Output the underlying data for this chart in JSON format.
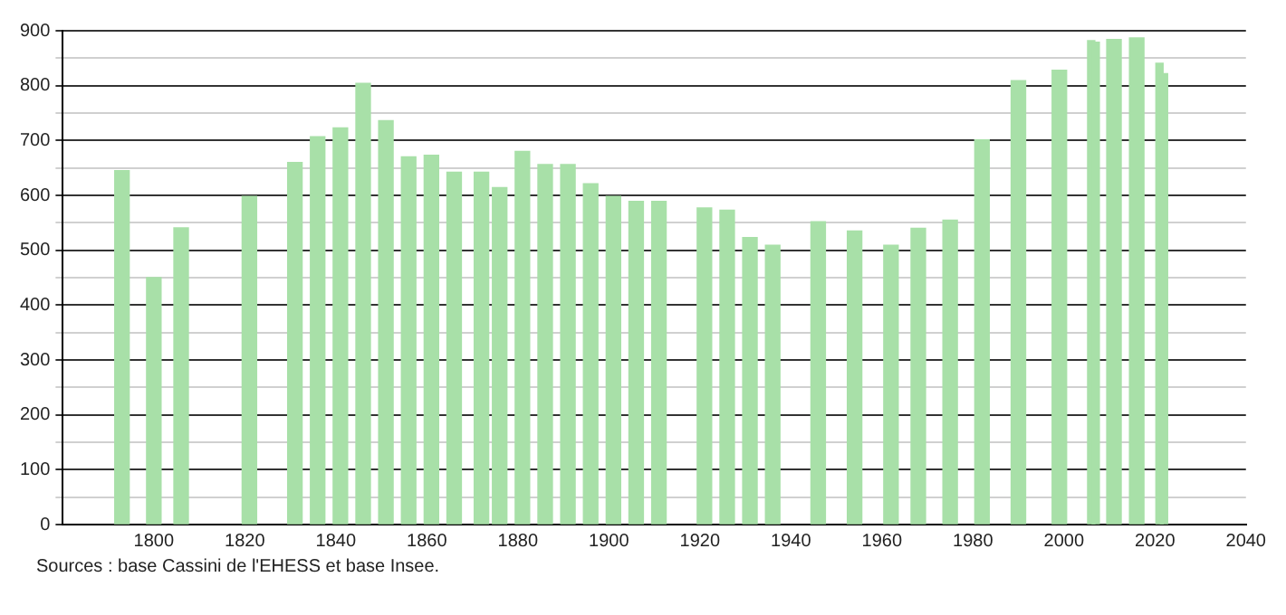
{
  "chart_data": {
    "type": "bar",
    "x": [
      1793,
      1800,
      1806,
      1821,
      1831,
      1836,
      1841,
      1846,
      1851,
      1856,
      1861,
      1866,
      1872,
      1876,
      1881,
      1886,
      1891,
      1896,
      1901,
      1906,
      1911,
      1921,
      1926,
      1931,
      1936,
      1946,
      1954,
      1962,
      1968,
      1975,
      1982,
      1990,
      1999,
      2006,
      2007,
      2011,
      2016,
      2021,
      2022
    ],
    "values": [
      645,
      450,
      541,
      598,
      660,
      707,
      723,
      804,
      736,
      670,
      673,
      642,
      642,
      614,
      680,
      656,
      656,
      621,
      598,
      589,
      589,
      577,
      573,
      523,
      509,
      552,
      535,
      509,
      540,
      555,
      701,
      809,
      828,
      882,
      879,
      884,
      887,
      841,
      822
    ],
    "color": "#a8e0a8",
    "xlim": [
      1780,
      2040
    ],
    "xticks": [
      1800,
      1820,
      1840,
      1860,
      1880,
      1900,
      1920,
      1940,
      1960,
      1980,
      2000,
      2020,
      2040
    ],
    "ylim": [
      0,
      900
    ],
    "yticks": [
      0,
      {
        "value": 50,
        "label": null
      },
      100,
      {
        "value": 150,
        "label": null
      },
      200,
      {
        "value": 250,
        "label": null
      },
      300,
      {
        "value": 350,
        "label": null
      },
      400,
      {
        "value": 450,
        "label": null
      },
      500,
      {
        "value": 550,
        "label": null
      },
      600,
      {
        "value": 650,
        "label": null
      },
      700,
      {
        "value": 750,
        "label": null
      },
      800,
      {
        "value": 850,
        "label": null
      },
      900
    ],
    "grid": "y",
    "annotations": [
      "Sources : base Cassini de l'EHESS et base Insee."
    ]
  }
}
